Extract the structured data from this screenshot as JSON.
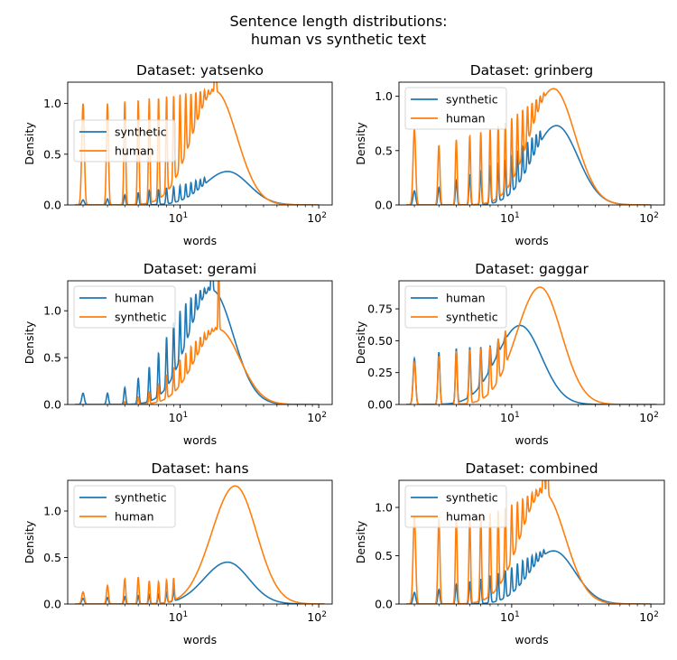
{
  "figure": {
    "suptitle_line1": "Sentence length distributions:",
    "suptitle_line2": "human vs synthetic text"
  },
  "colors": {
    "blue": "#1f77b4",
    "orange": "#ff7f0e"
  },
  "chart_data": [
    {
      "type": "line",
      "title": "Dataset: yatsenko",
      "xlabel": "words",
      "ylabel": "Density",
      "xscale": "log",
      "xlim": [
        1.55,
        125
      ],
      "ylim": [
        0,
        1.21
      ],
      "yticks": [
        0.0,
        0.5,
        1.0
      ],
      "ytick_labels": [
        "0.0",
        "0.5",
        "1.0"
      ],
      "legend": {
        "location": "center-left",
        "entries": [
          "synthetic",
          "human"
        ]
      },
      "series": [
        {
          "name": "synthetic",
          "color": "blue",
          "peaks": [
            2,
            3,
            4,
            5,
            6,
            7,
            8,
            9,
            10,
            11,
            12,
            13,
            14,
            15
          ],
          "peak_heights": [
            0.05,
            0.06,
            0.1,
            0.12,
            0.14,
            0.15,
            0.17,
            0.18,
            0.19,
            0.21,
            0.22,
            0.24,
            0.25,
            0.27
          ],
          "smooth_mode_x": 22,
          "smooth_mode_y": 0.33,
          "tail_end_x": 100
        },
        {
          "name": "human",
          "color": "orange",
          "peaks": [
            2,
            3,
            4,
            5,
            6,
            7,
            8,
            9,
            10,
            11,
            12,
            13,
            14,
            15,
            16,
            17,
            18
          ],
          "peak_heights": [
            1.0,
            1.0,
            1.02,
            1.04,
            1.05,
            1.06,
            1.07,
            1.08,
            1.09,
            1.1,
            1.1,
            1.11,
            1.12,
            1.13,
            1.13,
            1.14,
            1.15
          ],
          "smooth_mode_x": 18,
          "smooth_mode_y": 1.12,
          "tail_end_x": 100
        }
      ]
    },
    {
      "type": "line",
      "title": "Dataset: grinberg",
      "xlabel": "words",
      "ylabel": "Density",
      "xscale": "log",
      "xlim": [
        1.55,
        125
      ],
      "ylim": [
        0,
        1.13
      ],
      "yticks": [
        0.0,
        0.5,
        1.0
      ],
      "ytick_labels": [
        "0.0",
        "0.5",
        "1.0"
      ],
      "legend": {
        "location": "top-left",
        "entries": [
          "synthetic",
          "human"
        ]
      },
      "series": [
        {
          "name": "synthetic",
          "color": "blue",
          "peaks": [
            2,
            3,
            4,
            5,
            6,
            7,
            8,
            9,
            10,
            11,
            12,
            13,
            14,
            15,
            16
          ],
          "peak_heights": [
            0.13,
            0.16,
            0.22,
            0.28,
            0.32,
            0.36,
            0.39,
            0.42,
            0.46,
            0.5,
            0.54,
            0.58,
            0.62,
            0.65,
            0.68
          ],
          "smooth_mode_x": 21,
          "smooth_mode_y": 0.73,
          "tail_end_x": 100
        },
        {
          "name": "human",
          "color": "orange",
          "peaks": [
            2,
            3,
            4,
            5,
            6,
            7,
            8,
            9,
            10,
            11,
            12,
            13,
            14,
            15,
            16,
            17
          ],
          "peak_heights": [
            0.7,
            0.55,
            0.6,
            0.64,
            0.67,
            0.7,
            0.73,
            0.76,
            0.8,
            0.84,
            0.88,
            0.91,
            0.94,
            0.97,
            1.0,
            1.03
          ],
          "smooth_mode_x": 20,
          "smooth_mode_y": 1.07,
          "tail_end_x": 100
        }
      ]
    },
    {
      "type": "line",
      "title": "Dataset: gerami",
      "xlabel": "words",
      "ylabel": "Density",
      "xscale": "log",
      "xlim": [
        1.55,
        125
      ],
      "ylim": [
        0,
        1.32
      ],
      "yticks": [
        0.0,
        0.5,
        1.0
      ],
      "ytick_labels": [
        "0.0",
        "0.5",
        "1.0"
      ],
      "legend": {
        "location": "top-left",
        "entries": [
          "human",
          "synthetic"
        ]
      },
      "series": [
        {
          "name": "human",
          "color": "blue",
          "peaks": [
            2,
            3,
            4,
            5,
            6,
            7,
            8,
            9,
            10,
            11,
            12,
            13,
            14,
            15,
            16,
            17
          ],
          "peak_heights": [
            0.12,
            0.12,
            0.18,
            0.28,
            0.4,
            0.55,
            0.72,
            0.88,
            1.0,
            1.08,
            1.14,
            1.18,
            1.22,
            1.24,
            1.25,
            1.26
          ],
          "smooth_mode_x": 17,
          "smooth_mode_y": 1.22,
          "tail_end_x": 100
        },
        {
          "name": "synthetic",
          "color": "orange",
          "peaks": [
            4,
            5,
            6,
            7,
            8,
            9,
            10,
            11,
            12,
            13,
            14,
            15,
            16,
            17,
            18,
            19
          ],
          "peak_heights": [
            0.03,
            0.08,
            0.14,
            0.22,
            0.32,
            0.4,
            0.48,
            0.55,
            0.62,
            0.68,
            0.72,
            0.76,
            0.79,
            0.81,
            0.82,
            0.83
          ],
          "smooth_mode_x": 19,
          "smooth_mode_y": 0.8,
          "tail_end_x": 100
        }
      ]
    },
    {
      "type": "line",
      "title": "Dataset: gaggar",
      "xlabel": "words",
      "ylabel": "Density",
      "xscale": "log",
      "xlim": [
        1.55,
        125
      ],
      "ylim": [
        0,
        0.97
      ],
      "yticks": [
        0.0,
        0.25,
        0.5,
        0.75
      ],
      "ytick_labels": [
        "0.00",
        "0.25",
        "0.50",
        "0.75"
      ],
      "legend": {
        "location": "top-left",
        "entries": [
          "human",
          "synthetic"
        ]
      },
      "series": [
        {
          "name": "human",
          "color": "blue",
          "peaks": [
            2,
            3,
            4,
            5,
            6,
            7,
            8,
            9
          ],
          "peak_heights": [
            0.36,
            0.41,
            0.44,
            0.45,
            0.45,
            0.46,
            0.5,
            0.55
          ],
          "smooth_mode_x": 11.5,
          "smooth_mode_y": 0.62,
          "tail_end_x": 110
        },
        {
          "name": "synthetic",
          "color": "orange",
          "peaks": [
            2,
            3,
            4,
            5,
            6,
            7,
            8,
            9
          ],
          "peak_heights": [
            0.33,
            0.38,
            0.42,
            0.43,
            0.44,
            0.46,
            0.52,
            0.58
          ],
          "smooth_mode_x": 16,
          "smooth_mode_y": 0.92,
          "tail_end_x": 110
        }
      ]
    },
    {
      "type": "line",
      "title": "Dataset: hans",
      "xlabel": "words",
      "ylabel": "Density",
      "xscale": "log",
      "xlim": [
        1.55,
        125
      ],
      "ylim": [
        0,
        1.33
      ],
      "yticks": [
        0.0,
        0.5,
        1.0
      ],
      "ytick_labels": [
        "0.0",
        "0.5",
        "1.0"
      ],
      "legend": {
        "location": "top-left",
        "entries": [
          "synthetic",
          "human"
        ]
      },
      "series": [
        {
          "name": "synthetic",
          "color": "blue",
          "peaks": [
            2,
            3,
            4,
            5,
            6,
            7,
            8,
            9
          ],
          "peak_heights": [
            0.06,
            0.07,
            0.08,
            0.09,
            0.1,
            0.11,
            0.13,
            0.15
          ],
          "smooth_mode_x": 22,
          "smooth_mode_y": 0.45,
          "tail_end_x": 110
        },
        {
          "name": "human",
          "color": "orange",
          "peaks": [
            2,
            3,
            4,
            5,
            6,
            7,
            8,
            9
          ],
          "peak_heights": [
            0.13,
            0.2,
            0.27,
            0.29,
            0.25,
            0.24,
            0.26,
            0.28
          ],
          "smooth_mode_x": 25,
          "smooth_mode_y": 1.27,
          "tail_end_x": 110
        }
      ]
    },
    {
      "type": "line",
      "title": "Dataset: combined",
      "xlabel": "words",
      "ylabel": "Density",
      "xscale": "log",
      "xlim": [
        1.55,
        125
      ],
      "ylim": [
        0,
        1.28
      ],
      "yticks": [
        0.0,
        0.5,
        1.0
      ],
      "ytick_labels": [
        "0.0",
        "0.5",
        "1.0"
      ],
      "legend": {
        "location": "top-left",
        "entries": [
          "synthetic",
          "human"
        ]
      },
      "series": [
        {
          "name": "synthetic",
          "color": "blue",
          "peaks": [
            2,
            3,
            4,
            5,
            6,
            7,
            8,
            9,
            10,
            11,
            12,
            13,
            14,
            15,
            16,
            17
          ],
          "peak_heights": [
            0.12,
            0.15,
            0.2,
            0.23,
            0.26,
            0.29,
            0.32,
            0.35,
            0.38,
            0.42,
            0.45,
            0.48,
            0.5,
            0.52,
            0.54,
            0.56
          ],
          "smooth_mode_x": 20,
          "smooth_mode_y": 0.55,
          "tail_end_x": 100
        },
        {
          "name": "human",
          "color": "orange",
          "peaks": [
            2,
            3,
            4,
            5,
            6,
            7,
            8,
            9,
            10,
            11,
            12,
            13,
            14,
            15,
            16,
            17,
            18
          ],
          "peak_heights": [
            0.9,
            0.88,
            0.88,
            0.9,
            0.92,
            0.95,
            0.97,
            1.0,
            1.03,
            1.06,
            1.09,
            1.12,
            1.15,
            1.18,
            1.2,
            1.22,
            1.23
          ],
          "smooth_mode_x": 17,
          "smooth_mode_y": 1.15,
          "tail_end_x": 100
        }
      ]
    }
  ]
}
